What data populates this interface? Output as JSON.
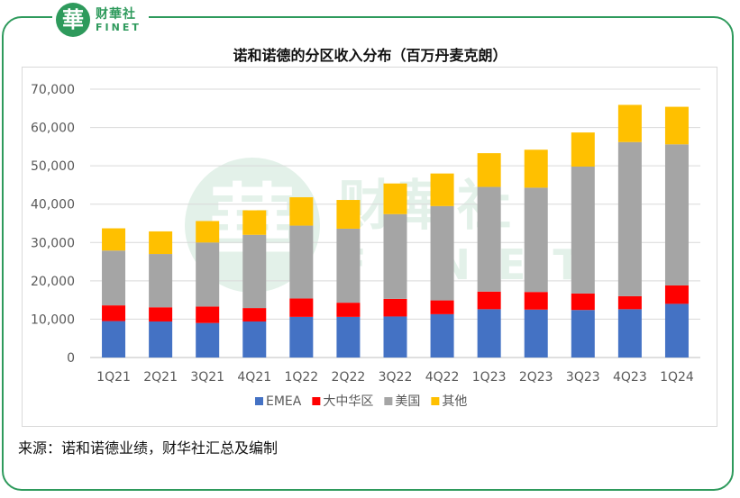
{
  "brand": {
    "logo_char": "華",
    "name_cn": "财華社",
    "name_en": "FINET"
  },
  "source_note": "来源：诺和诺德业绩，财华社汇总及编制",
  "colors": {
    "EMEA": "#4472c4",
    "大中华区": "#ff0000",
    "美国": "#a5a5a5",
    "其他": "#ffc000",
    "brand": "#2e9a5c"
  },
  "chart_data": {
    "type": "bar",
    "stacked": true,
    "title": "诺和诺德的分区收入分布（百万丹麦克朗）",
    "xlabel": "",
    "ylabel": "",
    "ylim": [
      0,
      70000
    ],
    "yticks": [
      "70,000",
      "60,000",
      "50,000",
      "40,000",
      "30,000",
      "20,000",
      "10,000",
      "0"
    ],
    "ytick_values": [
      70000,
      60000,
      50000,
      40000,
      30000,
      20000,
      10000,
      0
    ],
    "grid": true,
    "legend_position": "bottom",
    "categories": [
      "1Q21",
      "2Q21",
      "3Q21",
      "4Q21",
      "1Q22",
      "2Q22",
      "3Q22",
      "4Q22",
      "1Q23",
      "2Q23",
      "3Q23",
      "4Q23",
      "1Q24"
    ],
    "series": [
      {
        "name": "EMEA",
        "values": [
          9500,
          9400,
          9000,
          9400,
          10600,
          10600,
          10700,
          11300,
          12600,
          12500,
          12400,
          12600,
          14000
        ]
      },
      {
        "name": "大中华区",
        "values": [
          4100,
          3700,
          4300,
          3500,
          4800,
          3700,
          4600,
          3600,
          4600,
          4600,
          4300,
          3400,
          4800
        ]
      },
      {
        "name": "美国",
        "values": [
          14300,
          13900,
          16700,
          19100,
          19000,
          19300,
          22100,
          24600,
          27300,
          27200,
          33100,
          40200,
          36800
        ]
      },
      {
        "name": "其他",
        "values": [
          5800,
          5900,
          5600,
          6400,
          7400,
          7500,
          8000,
          8500,
          8800,
          9900,
          8900,
          9700,
          9800
        ]
      }
    ]
  }
}
